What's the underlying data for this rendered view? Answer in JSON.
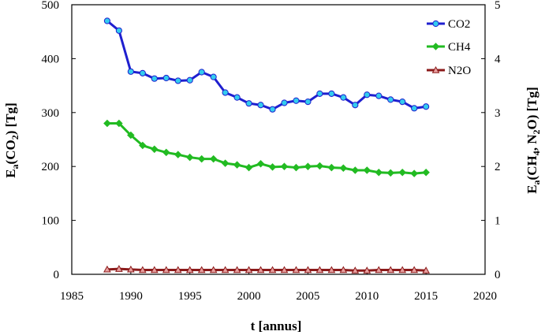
{
  "chart_data": {
    "type": "line",
    "title": "",
    "xlabel": "t [annus]",
    "ylabel_left": "E_a(CO_2) [Tg]",
    "ylabel_right": "E_a(CH_4, N_2O) [Tg]",
    "xlim": [
      1985,
      2020
    ],
    "ylim_left": [
      0,
      500
    ],
    "ylim_right": [
      0,
      5
    ],
    "xticks": [
      1985,
      1990,
      1995,
      2000,
      2005,
      2010,
      2015,
      2020
    ],
    "yticks_left": [
      0,
      100,
      200,
      300,
      400,
      500
    ],
    "yticks_right": [
      0,
      1,
      2,
      3,
      4,
      5
    ],
    "grid": false,
    "legend_position": "top-right",
    "x": [
      1988,
      1989,
      1990,
      1991,
      1992,
      1993,
      1994,
      1995,
      1996,
      1997,
      1998,
      1999,
      2000,
      2001,
      2002,
      2003,
      2004,
      2005,
      2006,
      2007,
      2008,
      2009,
      2010,
      2011,
      2012,
      2013,
      2014,
      2015
    ],
    "series": [
      {
        "name": "CO2",
        "axis": "left",
        "color": "#1f1fcf",
        "marker_color": "#33ccee",
        "marker": "circle",
        "values": [
          470,
          452,
          376,
          373,
          363,
          364,
          359,
          360,
          375,
          366,
          337,
          328,
          317,
          314,
          306,
          318,
          322,
          320,
          335,
          335,
          328,
          314,
          333,
          331,
          324,
          320,
          308,
          311
        ]
      },
      {
        "name": "CH4",
        "axis": "right",
        "color": "#22bb22",
        "marker_color": "#22bb22",
        "marker": "diamond",
        "values": [
          2.8,
          2.8,
          2.58,
          2.39,
          2.32,
          2.26,
          2.22,
          2.17,
          2.14,
          2.14,
          2.06,
          2.03,
          1.98,
          2.05,
          1.99,
          2.0,
          1.98,
          2.0,
          2.01,
          1.98,
          1.97,
          1.93,
          1.93,
          1.89,
          1.88,
          1.89,
          1.87,
          1.89
        ]
      },
      {
        "name": "N2O",
        "axis": "right",
        "color": "#8b1a1a",
        "marker_color": "#e8a0a0",
        "marker": "triangle",
        "values": [
          0.09,
          0.1,
          0.09,
          0.08,
          0.08,
          0.08,
          0.08,
          0.08,
          0.08,
          0.08,
          0.08,
          0.08,
          0.08,
          0.08,
          0.08,
          0.08,
          0.08,
          0.08,
          0.08,
          0.08,
          0.08,
          0.07,
          0.07,
          0.08,
          0.08,
          0.08,
          0.08,
          0.07
        ]
      }
    ]
  }
}
